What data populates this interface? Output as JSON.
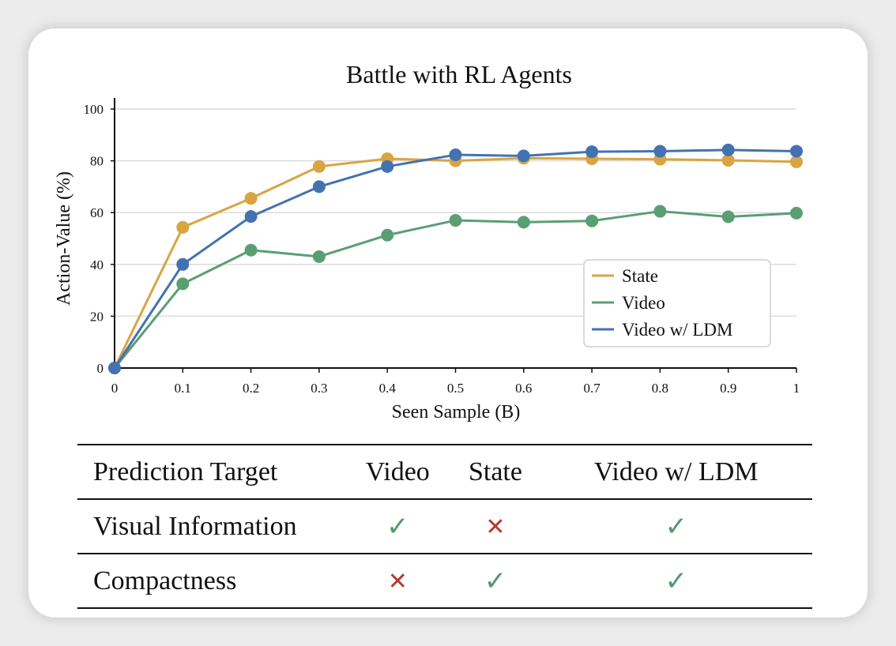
{
  "chart_data": {
    "type": "line",
    "title": "Battle with RL Agents",
    "xlabel": "Seen Sample (B)",
    "ylabel": "Action-Value (%)",
    "x": [
      0,
      0.1,
      0.2,
      0.3,
      0.4,
      0.5,
      0.6,
      0.7,
      0.8,
      0.9,
      1
    ],
    "x_tick_labels": [
      "0",
      "0.1",
      "0.2",
      "0.3",
      "0.4",
      "0.5",
      "0.6",
      "0.7",
      "0.8",
      "0.9",
      "1"
    ],
    "y_ticks": [
      0,
      20,
      40,
      60,
      80,
      100
    ],
    "xlim": [
      0,
      1
    ],
    "ylim": [
      0,
      100
    ],
    "grid": "horizontal",
    "legend_position": "lower-right",
    "series": [
      {
        "name": "State",
        "color": "#d9a441",
        "values": [
          0,
          54.3,
          65.5,
          77.8,
          80.8,
          80.0,
          81.0,
          80.8,
          80.6,
          80.2,
          79.6
        ]
      },
      {
        "name": "Video",
        "color": "#5a9e74",
        "values": [
          0,
          32.5,
          45.5,
          43.0,
          51.3,
          57.0,
          56.3,
          56.8,
          60.5,
          58.4,
          59.8
        ]
      },
      {
        "name": "Video w/ LDM",
        "color": "#4472b0",
        "values": [
          0,
          40.0,
          58.5,
          70.0,
          77.8,
          82.3,
          81.9,
          83.5,
          83.7,
          84.2,
          83.7
        ]
      }
    ]
  },
  "table": {
    "headers": [
      "Prediction Target",
      "Video",
      "State",
      "Video w/ LDM"
    ],
    "rows": [
      {
        "label": "Visual Information",
        "cells": [
          {
            "mark": "yes",
            "glyph": "✓"
          },
          {
            "mark": "no",
            "glyph": "✕"
          },
          {
            "mark": "yes",
            "glyph": "✓"
          }
        ]
      },
      {
        "label": "Compactness",
        "cells": [
          {
            "mark": "no",
            "glyph": "✕"
          },
          {
            "mark": "yes",
            "glyph": "✓"
          },
          {
            "mark": "yes",
            "glyph": "✓"
          }
        ]
      }
    ]
  }
}
